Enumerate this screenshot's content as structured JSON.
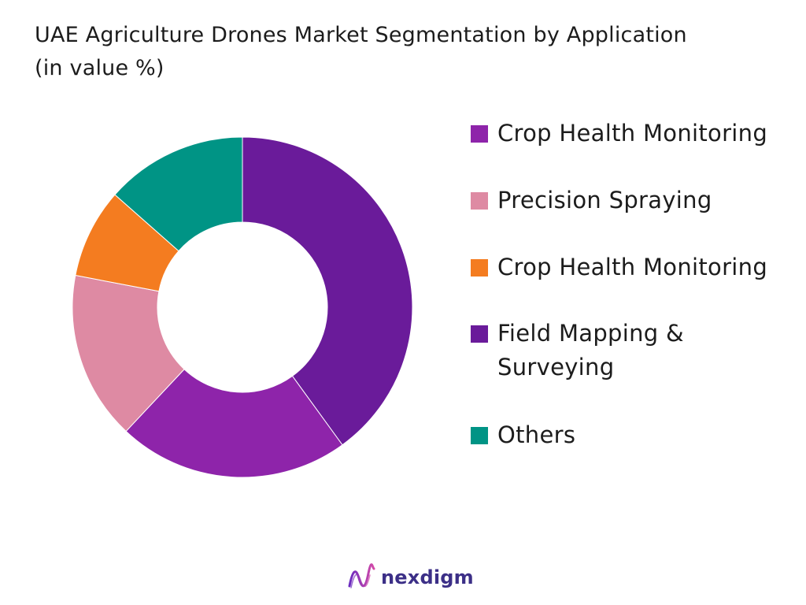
{
  "chart_data": {
    "type": "pie",
    "title": "UAE Agriculture Drones Market Segmentation by Application",
    "subtitle": "(in value %)",
    "donut": true,
    "series": [
      {
        "name": "Crop Health Monitoring",
        "value": 40,
        "color": "#6a1b9a"
      },
      {
        "name": "Precision Spraying",
        "value": 22,
        "color": "#8e24aa"
      },
      {
        "name": "Crop Health Monitoring",
        "value": 16,
        "color": "#de8aa3"
      },
      {
        "name": "Field Mapping & Surveying",
        "value": 8.5,
        "color": "#f47c20"
      },
      {
        "name": "Others",
        "value": 13.5,
        "color": "#009485"
      }
    ],
    "legend": {
      "position": "right",
      "items": [
        {
          "label": "Crop Health Monitoring",
          "color": "#8e24aa"
        },
        {
          "label": "Precision Spraying",
          "color": "#de8aa3"
        },
        {
          "label": "Crop Health Monitoring",
          "color": "#f47c20"
        },
        {
          "label": "Field Mapping & Surveying",
          "color": "#6a1b9a"
        },
        {
          "label": "Others",
          "color": "#009485"
        }
      ]
    }
  },
  "logo": {
    "text": "nexdigm"
  }
}
